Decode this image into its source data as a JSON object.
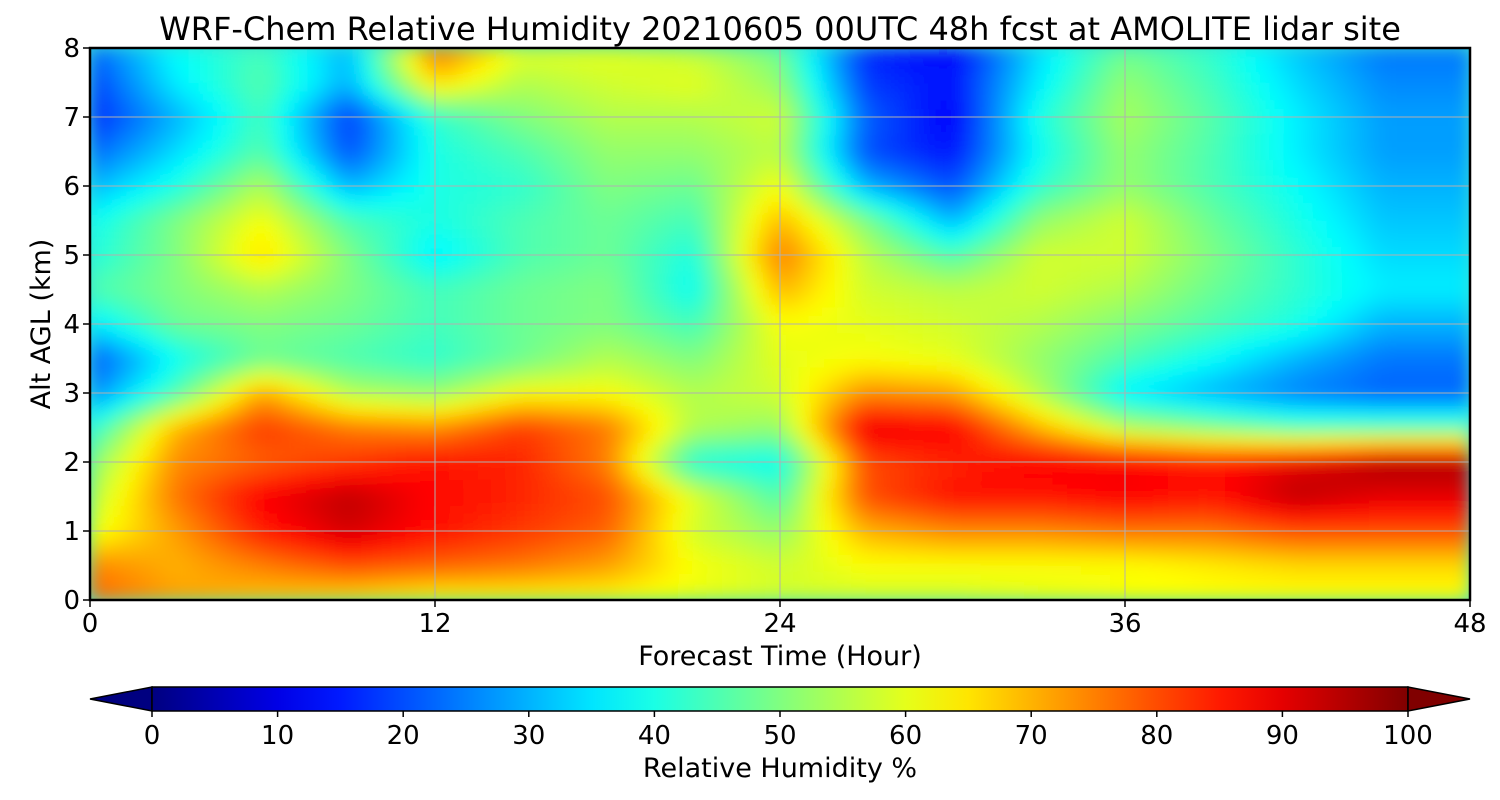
{
  "chart_data": {
    "type": "heatmap",
    "title": "WRF-Chem Relative Humidity 20210605 00UTC 48h fcst at AMOLITE lidar site",
    "xlabel": "Forecast Time (Hour)",
    "ylabel": "Alt AGL (km)",
    "xlim": [
      0,
      48
    ],
    "ylim": [
      0,
      8
    ],
    "x_ticks": [
      0,
      12,
      24,
      36,
      48
    ],
    "y_ticks": [
      0,
      1,
      2,
      3,
      4,
      5,
      6,
      7,
      8
    ],
    "grid": true,
    "x": [
      0,
      3,
      6,
      9,
      12,
      15,
      18,
      21,
      24,
      27,
      30,
      33,
      36,
      39,
      42,
      45,
      48
    ],
    "y": [
      0,
      0.5,
      1,
      1.5,
      2,
      2.5,
      3,
      3.5,
      4,
      4.5,
      5,
      5.5,
      6,
      6.5,
      7,
      7.5,
      8
    ],
    "z": [
      [
        78,
        72,
        68,
        65,
        62,
        62,
        62,
        60,
        58,
        58,
        58,
        60,
        62,
        62,
        62,
        62,
        62
      ],
      [
        75,
        70,
        75,
        80,
        78,
        76,
        72,
        62,
        58,
        62,
        62,
        62,
        62,
        64,
        66,
        66,
        66
      ],
      [
        60,
        72,
        85,
        92,
        86,
        82,
        78,
        58,
        52,
        70,
        74,
        74,
        76,
        76,
        80,
        80,
        80
      ],
      [
        55,
        76,
        88,
        94,
        87,
        84,
        80,
        60,
        45,
        80,
        86,
        86,
        88,
        86,
        94,
        90,
        90
      ],
      [
        50,
        74,
        78,
        82,
        86,
        84,
        75,
        40,
        38,
        80,
        84,
        88,
        88,
        86,
        90,
        96,
        96
      ],
      [
        40,
        70,
        82,
        76,
        74,
        82,
        76,
        55,
        52,
        90,
        88,
        70,
        55,
        50,
        45,
        45,
        45
      ],
      [
        25,
        45,
        72,
        55,
        52,
        62,
        62,
        55,
        58,
        74,
        72,
        55,
        36,
        30,
        25,
        22,
        22
      ],
      [
        20,
        38,
        48,
        45,
        42,
        48,
        55,
        50,
        60,
        62,
        60,
        52,
        45,
        38,
        30,
        24,
        24
      ],
      [
        35,
        48,
        50,
        48,
        44,
        48,
        50,
        44,
        62,
        60,
        58,
        55,
        50,
        45,
        40,
        30,
        30
      ],
      [
        45,
        50,
        55,
        50,
        44,
        48,
        50,
        38,
        70,
        58,
        56,
        58,
        55,
        48,
        42,
        36,
        36
      ],
      [
        40,
        50,
        66,
        50,
        36,
        45,
        48,
        40,
        76,
        56,
        45,
        58,
        58,
        50,
        42,
        34,
        34
      ],
      [
        38,
        50,
        62,
        45,
        40,
        45,
        48,
        44,
        70,
        50,
        30,
        52,
        58,
        48,
        40,
        32,
        32
      ],
      [
        30,
        40,
        55,
        30,
        40,
        42,
        50,
        48,
        62,
        30,
        20,
        42,
        52,
        45,
        38,
        30,
        30
      ],
      [
        22,
        34,
        46,
        20,
        40,
        45,
        52,
        52,
        56,
        20,
        14,
        38,
        52,
        45,
        36,
        28,
        28
      ],
      [
        16,
        30,
        44,
        18,
        42,
        50,
        55,
        55,
        58,
        22,
        12,
        40,
        54,
        46,
        36,
        28,
        28
      ],
      [
        18,
        36,
        46,
        30,
        66,
        55,
        58,
        60,
        52,
        18,
        14,
        36,
        52,
        44,
        34,
        26,
        26
      ],
      [
        22,
        38,
        44,
        30,
        78,
        60,
        60,
        56,
        48,
        16,
        12,
        34,
        48,
        42,
        32,
        24,
        24
      ]
    ],
    "colorbar": {
      "label": "Relative Humidity %",
      "ticks": [
        0,
        10,
        20,
        30,
        40,
        50,
        60,
        70,
        80,
        90,
        100
      ],
      "range": [
        0,
        100
      ],
      "extend": "both",
      "colormap": "jet"
    }
  }
}
